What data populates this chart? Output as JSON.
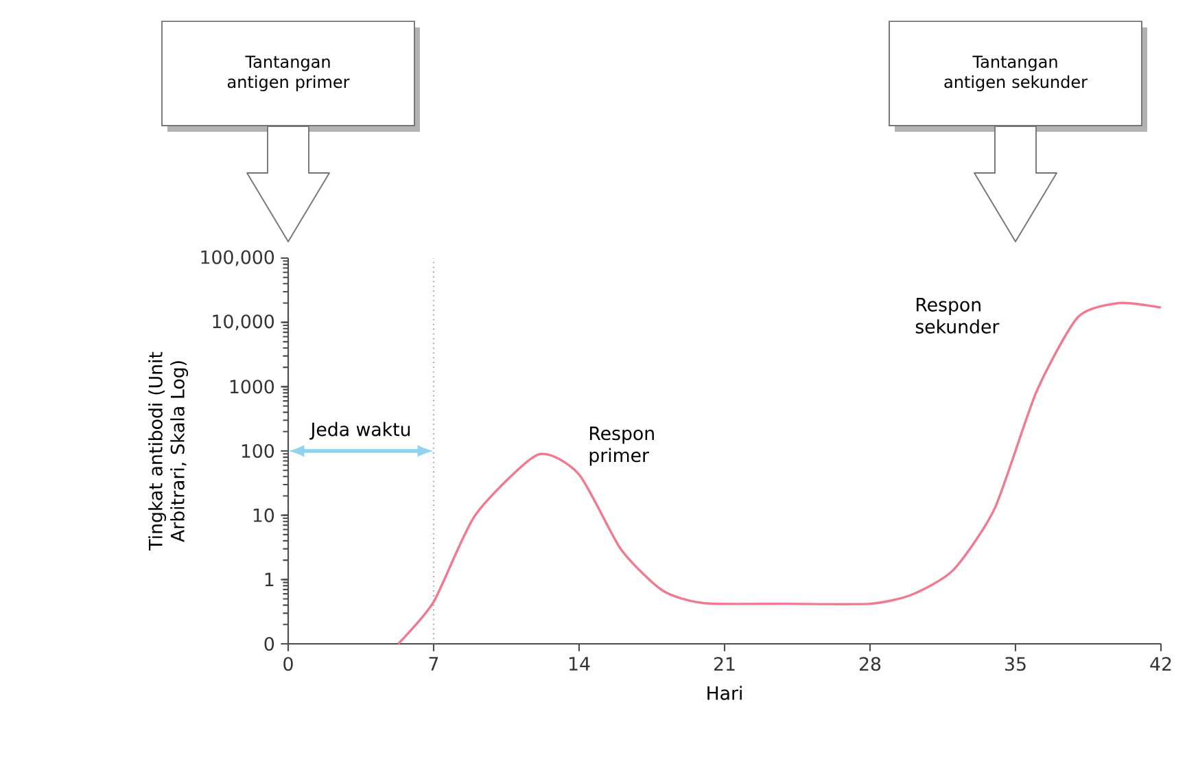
{
  "chart_data": {
    "type": "line",
    "xlabel": "Hari",
    "ylabel": "Tingkat antibodi (Unit Arbitrari, Skala Log)",
    "x": [
      5.3,
      7,
      9,
      12,
      14,
      16,
      18,
      20,
      24,
      28,
      30,
      32,
      34,
      36,
      38,
      40,
      42
    ],
    "series": [
      {
        "color": "#f07a8f",
        "values": [
          0.1,
          0.45,
          10,
          87,
          43,
          3,
          0.68,
          0.43,
          0.42,
          0.42,
          0.58,
          1.4,
          12.8,
          820,
          12000,
          20000,
          17000
        ]
      }
    ],
    "log": "y",
    "xlim": [
      0,
      42
    ],
    "xticks": [
      0,
      7,
      14,
      21,
      28,
      35,
      42
    ],
    "ylim": [
      0.1,
      100000
    ],
    "yticks": [
      {
        "value": 0.1,
        "label": "0"
      },
      1,
      10,
      100,
      1000,
      {
        "value": 10000,
        "label": "10,000"
      },
      {
        "value": 100000,
        "label": "100,000"
      }
    ],
    "grid": false,
    "marker": "none",
    "line_style": "solid",
    "ref_lines": [
      {
        "axis": "x",
        "value": 7,
        "color": "#888888",
        "line_style": "dotted"
      }
    ],
    "annotations": [
      "Tantangan antigen primer",
      "Tantangan antigen sekunder",
      {
        "text": "Jeda waktu",
        "x": 7,
        "y": 100
      },
      "Respon primer",
      "Respon sekunder"
    ]
  }
}
